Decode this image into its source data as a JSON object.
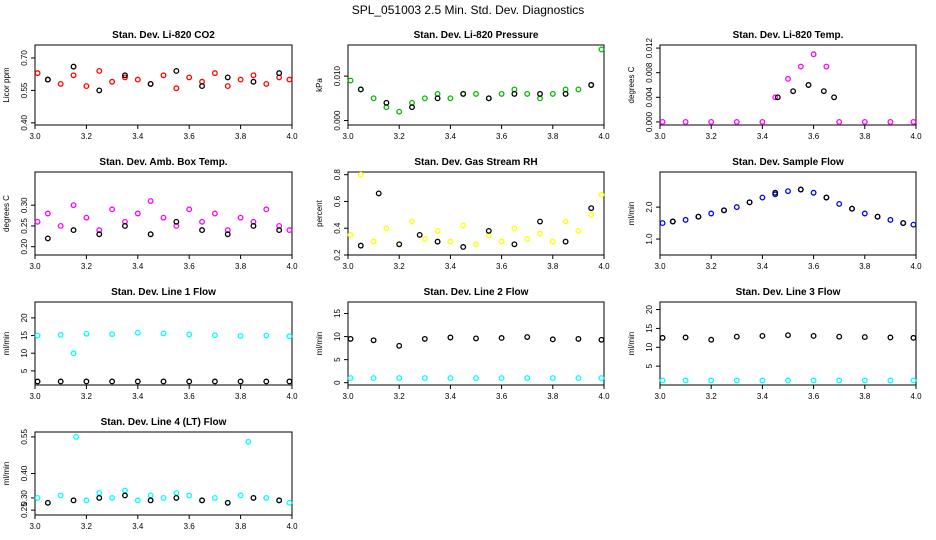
{
  "figure_title": "SPL_051003  2.5 Min. Std. Dev. Diagnostics",
  "colors": {
    "red": "#ff0000",
    "green": "#00bb00",
    "magenta": "#ff00ff",
    "yellow": "#ffff00",
    "blue": "#0000ff",
    "cyan": "#00ffff",
    "black": "#000000"
  },
  "chart_data": [
    {
      "type": "scatter",
      "title": "Stan. Dev. Li-820 CO2",
      "ylabel": "Licor ppm",
      "xlim": [
        3.0,
        4.0
      ],
      "ylim": [
        0.39,
        0.76
      ],
      "xticks": [
        "3.0",
        "3.2",
        "3.4",
        "3.6",
        "3.8",
        "4.0"
      ],
      "yticks": [
        "0.40",
        "0.55",
        "0.70"
      ],
      "grid": false,
      "series": [
        {
          "color": "red",
          "x": [
            3.01,
            3.05,
            3.1,
            3.15,
            3.2,
            3.25,
            3.3,
            3.35,
            3.4,
            3.45,
            3.5,
            3.55,
            3.6,
            3.65,
            3.7,
            3.75,
            3.8,
            3.85,
            3.9,
            3.95,
            3.99
          ],
          "y": [
            0.63,
            0.6,
            0.58,
            0.62,
            0.57,
            0.64,
            0.59,
            0.61,
            0.6,
            0.58,
            0.62,
            0.56,
            0.61,
            0.59,
            0.63,
            0.57,
            0.6,
            0.62,
            0.58,
            0.61,
            0.6
          ]
        },
        {
          "color": "black",
          "x": [
            3.05,
            3.15,
            3.25,
            3.35,
            3.45,
            3.55,
            3.65,
            3.75,
            3.85,
            3.95
          ],
          "y": [
            0.6,
            0.66,
            0.55,
            0.62,
            0.58,
            0.64,
            0.57,
            0.61,
            0.59,
            0.63
          ]
        }
      ]
    },
    {
      "type": "scatter",
      "title": "Stan. Dev. Li-820 Pressure",
      "ylabel": "kPa",
      "xlim": [
        3.0,
        4.0
      ],
      "ylim": [
        -0.001,
        0.017
      ],
      "xticks": [
        "3.0",
        "3.2",
        "3.4",
        "3.6",
        "3.8",
        "4.0"
      ],
      "yticks": [
        "0.000",
        "0.010"
      ],
      "grid": false,
      "series": [
        {
          "color": "green",
          "x": [
            3.01,
            3.05,
            3.1,
            3.15,
            3.2,
            3.25,
            3.3,
            3.35,
            3.4,
            3.45,
            3.5,
            3.55,
            3.6,
            3.65,
            3.7,
            3.75,
            3.8,
            3.85,
            3.9,
            3.95,
            3.99
          ],
          "y": [
            0.009,
            0.007,
            0.005,
            0.003,
            0.002,
            0.004,
            0.005,
            0.006,
            0.005,
            0.006,
            0.006,
            0.005,
            0.006,
            0.007,
            0.006,
            0.005,
            0.006,
            0.007,
            0.007,
            0.008,
            0.016
          ]
        },
        {
          "color": "black",
          "x": [
            3.05,
            3.15,
            3.25,
            3.35,
            3.45,
            3.55,
            3.65,
            3.75,
            3.85,
            3.95
          ],
          "y": [
            0.007,
            0.004,
            0.003,
            0.005,
            0.006,
            0.005,
            0.006,
            0.006,
            0.006,
            0.008
          ]
        }
      ]
    },
    {
      "type": "scatter",
      "title": "Stan. Dev. Li-820 Temp.",
      "ylabel": "degrees C",
      "xlim": [
        3.0,
        4.0
      ],
      "ylim": [
        -0.0005,
        0.0125
      ],
      "xticks": [
        "3.0",
        "3.2",
        "3.4",
        "3.6",
        "3.8",
        "4.0"
      ],
      "yticks": [
        "0.000",
        "0.004",
        "0.008",
        "0.012"
      ],
      "grid": false,
      "series": [
        {
          "color": "magenta",
          "x": [
            3.01,
            3.1,
            3.2,
            3.3,
            3.4,
            3.45,
            3.5,
            3.55,
            3.6,
            3.65,
            3.7,
            3.8,
            3.9,
            3.99
          ],
          "y": [
            0.0,
            0.0,
            0.0,
            0.0,
            0.0,
            0.004,
            0.007,
            0.009,
            0.011,
            0.009,
            0.0,
            0.0,
            0.0,
            0.0
          ]
        },
        {
          "color": "black",
          "x": [
            3.46,
            3.52,
            3.58,
            3.64,
            3.68
          ],
          "y": [
            0.004,
            0.005,
            0.006,
            0.005,
            0.004
          ]
        }
      ]
    },
    {
      "type": "scatter",
      "title": "Stan. Dev. Amb. Box Temp.",
      "ylabel": "degrees C",
      "xlim": [
        3.0,
        4.0
      ],
      "ylim": [
        0.18,
        0.38
      ],
      "xticks": [
        "3.0",
        "3.2",
        "3.4",
        "3.6",
        "3.8",
        "4.0"
      ],
      "yticks": [
        "0.20",
        "0.25",
        "0.30"
      ],
      "grid": false,
      "series": [
        {
          "color": "magenta",
          "x": [
            3.01,
            3.05,
            3.1,
            3.15,
            3.2,
            3.25,
            3.3,
            3.35,
            3.4,
            3.45,
            3.5,
            3.55,
            3.6,
            3.65,
            3.7,
            3.75,
            3.8,
            3.85,
            3.9,
            3.95,
            3.99
          ],
          "y": [
            0.26,
            0.28,
            0.25,
            0.3,
            0.27,
            0.24,
            0.29,
            0.26,
            0.28,
            0.31,
            0.27,
            0.25,
            0.29,
            0.26,
            0.28,
            0.24,
            0.27,
            0.26,
            0.29,
            0.25,
            0.24
          ]
        },
        {
          "color": "black",
          "x": [
            3.05,
            3.15,
            3.25,
            3.35,
            3.45,
            3.55,
            3.65,
            3.75,
            3.85,
            3.95
          ],
          "y": [
            0.22,
            0.24,
            0.23,
            0.25,
            0.23,
            0.26,
            0.24,
            0.23,
            0.25,
            0.24
          ]
        }
      ]
    },
    {
      "type": "scatter",
      "title": "Stan. Dev. Gas Stream RH",
      "ylabel": "percent",
      "xlim": [
        3.0,
        4.0
      ],
      "ylim": [
        0.2,
        0.82
      ],
      "xticks": [
        "3.0",
        "3.2",
        "3.4",
        "3.6",
        "3.8",
        "4.0"
      ],
      "yticks": [
        "0.2",
        "0.4",
        "0.6",
        "0.8"
      ],
      "grid": false,
      "series": [
        {
          "color": "yellow",
          "x": [
            3.01,
            3.05,
            3.1,
            3.15,
            3.2,
            3.25,
            3.3,
            3.35,
            3.4,
            3.45,
            3.5,
            3.55,
            3.6,
            3.65,
            3.7,
            3.75,
            3.8,
            3.85,
            3.9,
            3.95,
            3.99
          ],
          "y": [
            0.35,
            0.8,
            0.3,
            0.4,
            0.28,
            0.45,
            0.32,
            0.38,
            0.3,
            0.42,
            0.28,
            0.35,
            0.3,
            0.4,
            0.32,
            0.36,
            0.3,
            0.45,
            0.38,
            0.5,
            0.65
          ]
        },
        {
          "color": "black",
          "x": [
            3.05,
            3.12,
            3.2,
            3.28,
            3.35,
            3.45,
            3.55,
            3.65,
            3.75,
            3.85,
            3.95
          ],
          "y": [
            0.27,
            0.66,
            0.28,
            0.35,
            0.3,
            0.26,
            0.38,
            0.28,
            0.45,
            0.3,
            0.55
          ]
        }
      ]
    },
    {
      "type": "scatter",
      "title": "Stan. Dev. Sample Flow",
      "ylabel": "ml/min",
      "xlim": [
        3.0,
        4.0
      ],
      "ylim": [
        0.5,
        3.1
      ],
      "xticks": [
        "3.0",
        "3.2",
        "3.4",
        "3.6",
        "3.8",
        "4.0"
      ],
      "yticks": [
        "1.0",
        "2.0"
      ],
      "grid": false,
      "series": [
        {
          "color": "blue",
          "x": [
            3.01,
            3.05,
            3.1,
            3.15,
            3.2,
            3.25,
            3.3,
            3.35,
            3.4,
            3.45,
            3.5,
            3.55,
            3.6,
            3.65,
            3.7,
            3.75,
            3.8,
            3.85,
            3.9,
            3.95,
            3.99
          ],
          "y": [
            1.5,
            1.55,
            1.6,
            1.7,
            1.8,
            1.9,
            2.0,
            2.15,
            2.3,
            2.4,
            2.5,
            2.55,
            2.45,
            2.3,
            2.1,
            1.95,
            1.8,
            1.7,
            1.6,
            1.5,
            1.45
          ]
        },
        {
          "color": "black",
          "x": [
            3.05,
            3.15,
            3.25,
            3.35,
            3.45,
            3.55,
            3.65,
            3.75,
            3.85,
            3.95
          ],
          "y": [
            1.55,
            1.7,
            1.9,
            2.15,
            2.45,
            2.55,
            2.3,
            1.95,
            1.7,
            1.5
          ]
        }
      ]
    },
    {
      "type": "scatter",
      "title": "Stan. Dev. Line 1 Flow",
      "ylabel": "ml/min",
      "xlim": [
        3.0,
        4.0
      ],
      "ylim": [
        1.0,
        24.5
      ],
      "xticks": [
        "3.0",
        "3.2",
        "3.4",
        "3.6",
        "3.8",
        "4.0"
      ],
      "yticks": [
        "5",
        "10",
        "15",
        "20"
      ],
      "grid": false,
      "series": [
        {
          "color": "cyan",
          "x": [
            3.01,
            3.1,
            3.15,
            3.2,
            3.3,
            3.4,
            3.5,
            3.6,
            3.7,
            3.8,
            3.9,
            3.99
          ],
          "y": [
            15.0,
            15.2,
            10.0,
            15.5,
            15.4,
            15.8,
            15.6,
            15.3,
            15.1,
            14.9,
            15.0,
            14.8
          ]
        },
        {
          "color": "black",
          "x": [
            3.01,
            3.1,
            3.2,
            3.3,
            3.4,
            3.5,
            3.6,
            3.7,
            3.8,
            3.9,
            3.99
          ],
          "y": [
            2.0,
            2.0,
            2.0,
            2.0,
            2.0,
            2.0,
            2.0,
            2.0,
            2.0,
            2.0,
            2.0
          ]
        }
      ]
    },
    {
      "type": "scatter",
      "title": "Stan. Dev. Line 2 Flow",
      "ylabel": "ml/min",
      "xlim": [
        3.0,
        4.0
      ],
      "ylim": [
        -0.5,
        17.5
      ],
      "xticks": [
        "3.0",
        "3.2",
        "3.4",
        "3.6",
        "3.8",
        "4.0"
      ],
      "yticks": [
        "0",
        "5",
        "10",
        "15"
      ],
      "grid": false,
      "series": [
        {
          "color": "cyan",
          "x": [
            3.01,
            3.1,
            3.2,
            3.3,
            3.4,
            3.5,
            3.6,
            3.7,
            3.8,
            3.9,
            3.99
          ],
          "y": [
            1.0,
            1.0,
            1.0,
            1.0,
            1.0,
            1.0,
            1.0,
            1.0,
            1.0,
            1.0,
            1.0
          ]
        },
        {
          "color": "black",
          "x": [
            3.01,
            3.1,
            3.2,
            3.3,
            3.4,
            3.5,
            3.6,
            3.7,
            3.8,
            3.9,
            3.99
          ],
          "y": [
            9.5,
            9.2,
            8.0,
            9.5,
            9.8,
            9.6,
            9.7,
            9.9,
            9.4,
            9.5,
            9.3
          ]
        }
      ]
    },
    {
      "type": "scatter",
      "title": "Stan. Dev. Line 3 Flow",
      "ylabel": "ml/min",
      "xlim": [
        3.0,
        4.0
      ],
      "ylim": [
        0.0,
        22.0
      ],
      "xticks": [
        "3.0",
        "3.2",
        "3.4",
        "3.6",
        "3.8",
        "4.0"
      ],
      "yticks": [
        "5",
        "10",
        "15",
        "20"
      ],
      "grid": false,
      "series": [
        {
          "color": "cyan",
          "x": [
            3.01,
            3.1,
            3.2,
            3.3,
            3.4,
            3.5,
            3.6,
            3.7,
            3.8,
            3.9,
            3.99
          ],
          "y": [
            1.2,
            1.2,
            1.2,
            1.2,
            1.2,
            1.2,
            1.2,
            1.2,
            1.2,
            1.2,
            1.2
          ]
        },
        {
          "color": "black",
          "x": [
            3.01,
            3.1,
            3.2,
            3.3,
            3.4,
            3.5,
            3.6,
            3.7,
            3.8,
            3.9,
            3.99
          ],
          "y": [
            12.5,
            12.6,
            12.0,
            12.8,
            13.0,
            13.2,
            13.0,
            12.8,
            12.7,
            12.6,
            12.5
          ]
        }
      ]
    },
    {
      "type": "scatter",
      "title": "Stan. Dev. Line 4 (LT) Flow",
      "ylabel": "ml/min",
      "xlim": [
        3.0,
        4.0
      ],
      "ylim": [
        0.23,
        0.57
      ],
      "xticks": [
        "3.0",
        "3.2",
        "3.4",
        "3.6",
        "3.8",
        "4.0"
      ],
      "yticks": [
        "0.25",
        "0.30",
        "0.40",
        "0.55"
      ],
      "grid": false,
      "series": [
        {
          "color": "cyan",
          "x": [
            3.01,
            3.05,
            3.1,
            3.16,
            3.2,
            3.25,
            3.3,
            3.35,
            3.4,
            3.45,
            3.5,
            3.55,
            3.6,
            3.65,
            3.7,
            3.75,
            3.8,
            3.83,
            3.9,
            3.95,
            3.99
          ],
          "y": [
            0.3,
            0.28,
            0.31,
            0.55,
            0.29,
            0.32,
            0.3,
            0.33,
            0.29,
            0.31,
            0.3,
            0.32,
            0.31,
            0.29,
            0.3,
            0.28,
            0.31,
            0.53,
            0.3,
            0.29,
            0.28
          ]
        },
        {
          "color": "black",
          "x": [
            3.05,
            3.15,
            3.25,
            3.35,
            3.45,
            3.55,
            3.65,
            3.75,
            3.85,
            3.95
          ],
          "y": [
            0.28,
            0.29,
            0.3,
            0.31,
            0.29,
            0.3,
            0.29,
            0.28,
            0.3,
            0.29
          ]
        }
      ]
    }
  ]
}
